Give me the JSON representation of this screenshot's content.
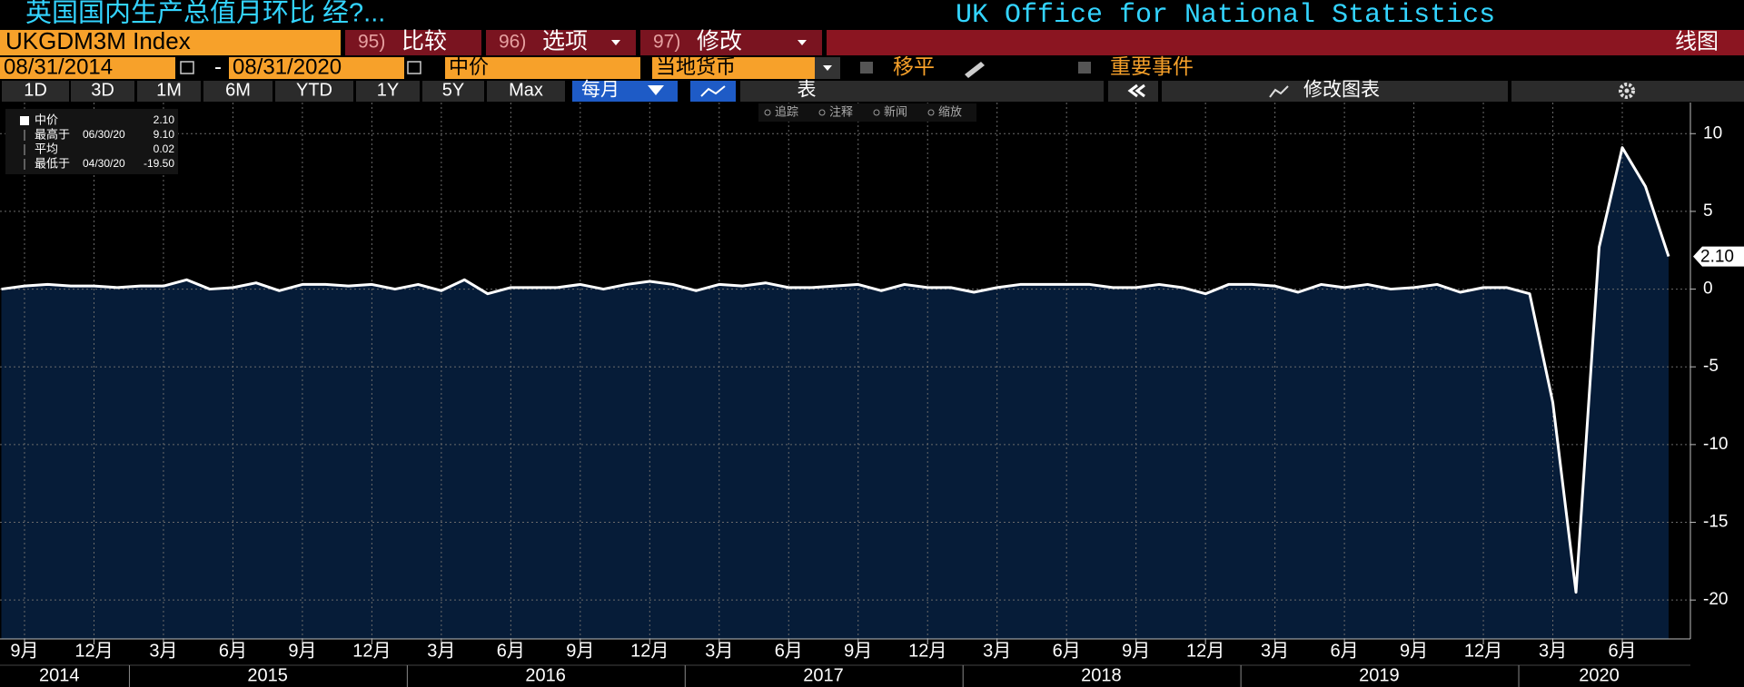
{
  "toolbar": {
    "title": "英国国内生产总值月环比 经?...",
    "source": "UK Office for National Statistics",
    "ticker": "UKGDM3M Index",
    "buttons": [
      {
        "num": "95)",
        "label": "比较"
      },
      {
        "num": "96)",
        "label": "选项"
      },
      {
        "num": "97)",
        "label": "修改"
      }
    ],
    "view": "线图",
    "start": "08/31/2014",
    "dash": "-",
    "end": "08/31/2020",
    "field": "中价",
    "currency": "当地货币",
    "moving": "移平",
    "events": "重要事件",
    "periods": [
      "1D",
      "3D",
      "1M",
      "6M",
      "YTD",
      "1Y",
      "5Y",
      "Max"
    ],
    "frequency": "每月",
    "table": "表",
    "edit_chart": "修改图表",
    "tools": [
      "追踪",
      "注释",
      "新闻",
      "缩放"
    ]
  },
  "legend": {
    "items": [
      {
        "name": "中价",
        "value": {
          "value": 2.1,
          "label": "2.10"
        }
      },
      {
        "name": "最高于",
        "date": "06/30/20",
        "value": {
          "value": 9.1,
          "label": "9.10"
        }
      },
      {
        "name": "平均",
        "value": 0.02
      },
      {
        "name": "最低于",
        "date": "04/30/20",
        "value": {
          "value": -19.5,
          "label": "-19.50"
        }
      }
    ]
  },
  "chart_data": {
    "type": "area",
    "color": "#ffffff",
    "fill": "#061c38",
    "grid": true,
    "categories": [
      null,
      "9月",
      null,
      null,
      "12月",
      null,
      null,
      "3月",
      null,
      null,
      "6月",
      null,
      null,
      "9月",
      null,
      null,
      "12月",
      null,
      null,
      "3月",
      null,
      null,
      "6月",
      null,
      null,
      "9月",
      null,
      null,
      "12月",
      null,
      null,
      "3月",
      null,
      null,
      "6月",
      null,
      null,
      "9月",
      null,
      null,
      "12月",
      null,
      null,
      "3月",
      null,
      null,
      "6月",
      null,
      null,
      "9月",
      null,
      null,
      "12月",
      null,
      null,
      "3月",
      null,
      null,
      "6月",
      null,
      null,
      "9月",
      null,
      null,
      "12月",
      null,
      null,
      "3月",
      null,
      null,
      "6月",
      null,
      null
    ],
    "years": [
      "2014",
      "2015",
      "2016",
      "2017",
      "2018",
      "2019",
      "2020"
    ],
    "values": [
      0.0,
      0.2,
      0.3,
      0.2,
      0.2,
      0.1,
      0.2,
      0.2,
      0.6,
      0.0,
      0.1,
      0.4,
      -0.1,
      0.3,
      0.3,
      0.2,
      0.3,
      0.0,
      0.3,
      -0.1,
      0.6,
      -0.3,
      0.1,
      0.1,
      0.1,
      0.3,
      0.0,
      0.3,
      0.5,
      0.3,
      -0.1,
      0.3,
      0.2,
      0.4,
      0.1,
      0.1,
      0.2,
      0.3,
      -0.1,
      0.3,
      0.1,
      0.1,
      -0.2,
      0.1,
      0.3,
      0.3,
      0.3,
      0.3,
      0.1,
      0.1,
      0.3,
      0.1,
      -0.3,
      0.3,
      0.3,
      0.2,
      -0.2,
      0.3,
      0.1,
      0.3,
      0.0,
      0.1,
      0.3,
      -0.2,
      0.1,
      0.1,
      -0.3,
      -7.3,
      -19.5,
      2.7,
      9.1,
      6.6,
      2.1
    ],
    "ylim": [
      -22.5,
      12
    ],
    "yticks": [
      10,
      5,
      0,
      -5,
      -10,
      -15,
      -20
    ]
  }
}
